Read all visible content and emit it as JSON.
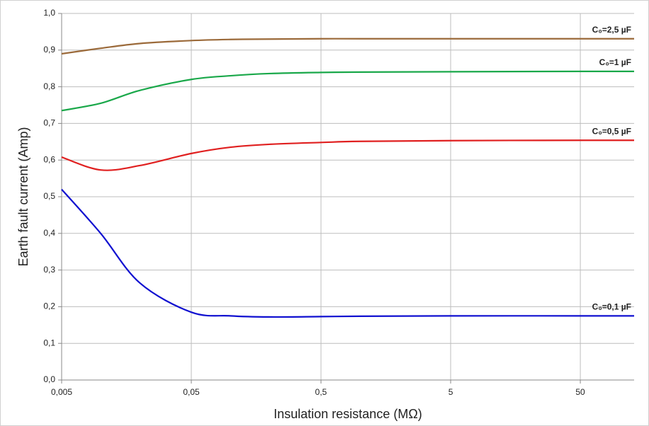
{
  "chart_data": {
    "type": "line",
    "xlabel": "Insulation resistance (MΩ)",
    "ylabel": "Earth fault current (Amp)",
    "xscale": "log",
    "grid": true,
    "x": [
      0.005,
      0.01,
      0.02,
      0.05,
      0.1,
      0.2,
      0.5,
      1,
      5,
      50,
      130
    ],
    "series": [
      {
        "name": "C₀=2,5 µF",
        "color": "#9b6a3a",
        "values": [
          0.89,
          0.905,
          0.918,
          0.926,
          0.929,
          0.93,
          0.931,
          0.931,
          0.931,
          0.931,
          0.931
        ]
      },
      {
        "name": "C₀=1 µF",
        "color": "#1aa84a",
        "values": [
          0.735,
          0.755,
          0.79,
          0.82,
          0.83,
          0.836,
          0.839,
          0.84,
          0.841,
          0.842,
          0.842
        ]
      },
      {
        "name": "C₀=0,5 µF",
        "color": "#e02020",
        "values": [
          0.608,
          0.573,
          0.585,
          0.618,
          0.635,
          0.643,
          0.648,
          0.651,
          0.653,
          0.654,
          0.654
        ]
      },
      {
        "name": "C₀=0,1 µF",
        "color": "#1010d0",
        "values": [
          0.52,
          0.4,
          0.265,
          0.185,
          0.175,
          0.172,
          0.173,
          0.174,
          0.175,
          0.175,
          0.175
        ]
      }
    ],
    "xlim": [
      0.005,
      130
    ],
    "xticks": [
      {
        "value": 0.005,
        "label": "0,005"
      },
      {
        "value": 0.05,
        "label": "0,05"
      },
      {
        "value": 0.5,
        "label": "0,5"
      },
      5,
      50
    ],
    "ylim": [
      0,
      1
    ],
    "yticks": [
      {
        "value": 0,
        "label": "0,0"
      },
      {
        "value": 0.1,
        "label": "0,1"
      },
      {
        "value": 0.2,
        "label": "0,2"
      },
      {
        "value": 0.3,
        "label": "0,3"
      },
      {
        "value": 0.4,
        "label": "0,4"
      },
      {
        "value": 0.5,
        "label": "0,5"
      },
      {
        "value": 0.6,
        "label": "0,6"
      },
      {
        "value": 0.7,
        "label": "0,7"
      },
      {
        "value": 0.8,
        "label": "0,8"
      },
      {
        "value": 0.9,
        "label": "0,9"
      },
      {
        "value": 1,
        "label": "1,0"
      }
    ]
  }
}
